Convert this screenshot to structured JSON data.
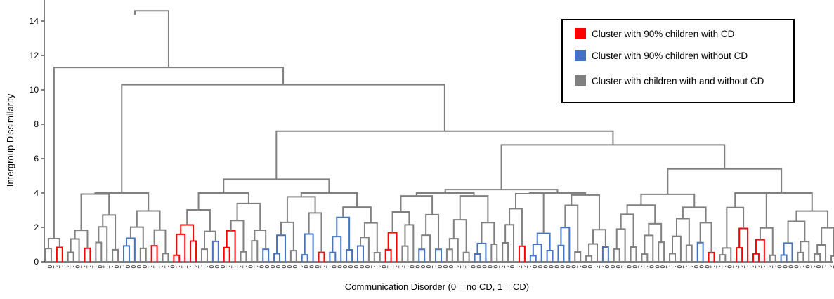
{
  "chart_data": {
    "type": "dendrogram",
    "xlabel": "Communication Disorder (0 = no CD, 1 = CD)",
    "ylabel": "Intergroup Dissimilarity",
    "ylim": [
      0,
      15
    ],
    "yticks": [
      0,
      2,
      4,
      6,
      8,
      10,
      12,
      14
    ],
    "grid": false,
    "legend_position": "top-right",
    "legend": [
      {
        "label": "Cluster with 90% children with CD",
        "color": "#ff0000"
      },
      {
        "label": "Cluster with 90% children without CD",
        "color": "#4472c4"
      },
      {
        "label": "Cluster with children with and without CD",
        "color": "#808080"
      }
    ],
    "major_merge_heights": [
      14.6,
      11.3,
      10.3,
      7.6,
      6.8,
      5.4,
      4.8,
      4.5,
      4.2
    ],
    "leaf_labels": "0111101110110100001111011111100011110100000001000110000000110111100001000111000001101110000000010011000100110001101100011101111111100001010111",
    "colors": {
      "cd": "#ff0000",
      "no_cd": "#4472c4",
      "mixed": "#808080"
    }
  }
}
